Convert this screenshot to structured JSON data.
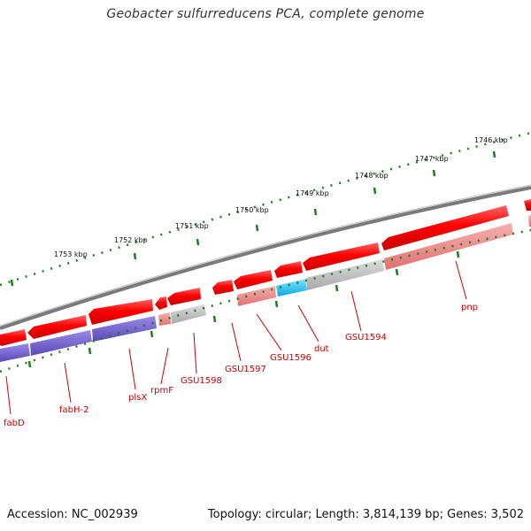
{
  "header": {
    "title": "Geobacter sulfurreducens PCA, complete genome"
  },
  "footer": {
    "accession": "Accession: NC_002939",
    "summary": "Topology: circular; Length: 3,814,139 bp; Genes: 3,502"
  },
  "scale": {
    "labels": [
      "1753 kbp",
      "1752 kbp",
      "1751 kbp",
      "1750 kbp",
      "1749 kbp",
      "1748 kbp",
      "1747 kbp",
      "1746 kbp"
    ]
  },
  "genes": [
    {
      "name": "fabD",
      "color": "#cc0000"
    },
    {
      "name": "fabH-2",
      "color": "#cc0000"
    },
    {
      "name": "plsX",
      "color": "#cc0000"
    },
    {
      "name": "rpmF",
      "color": "#cc0000"
    },
    {
      "name": "GSU1598",
      "color": "#cc0000"
    },
    {
      "name": "GSU1597",
      "color": "#cc0000"
    },
    {
      "name": "GSU1596",
      "color": "#cc0000"
    },
    {
      "name": "dut",
      "color": "#cc0000"
    },
    {
      "name": "GSU1594",
      "color": "#cc0000"
    },
    {
      "name": "pnp",
      "color": "#cc0000"
    }
  ],
  "colors": {
    "cds": "#ff0000",
    "protein_purple": "#6a5acd",
    "protein_pink": "#f08080",
    "protein_gray": "#b8b8b8",
    "protein_cyan": "#1ec8f0",
    "tick": "#1a7f1a",
    "backbone": "#7a7a7a"
  }
}
